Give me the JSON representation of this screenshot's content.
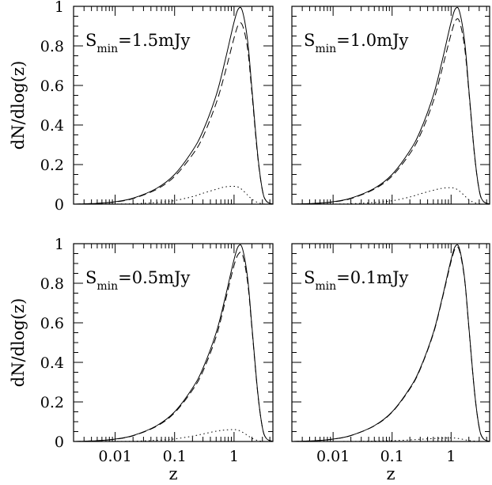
{
  "chart_data": [
    {
      "type": "line",
      "annotation": {
        "prefix": "S",
        "sub": "min",
        "value": "=1.5mJy"
      },
      "xscale": "log",
      "xlim": [
        0.002,
        4.5
      ],
      "ylim": [
        0,
        1
      ],
      "xticks": [
        "",
        "",
        ""
      ],
      "yticks": [
        "0",
        "0.2",
        "0.4",
        "0.6",
        "0.8",
        "1"
      ],
      "xlabel": "",
      "ylabel": "dN/dlog(z)",
      "peak_z": 1.3,
      "ratio_dash": 0.91,
      "dot_peak": 0.09,
      "dot_z": 0.9,
      "x": [
        0.002,
        0.005,
        0.01,
        0.02,
        0.05,
        0.1,
        0.2,
        0.3,
        0.5,
        0.7,
        1.0,
        1.2,
        1.4,
        1.7,
        2.0,
        2.5,
        3.0,
        3.5,
        4.5
      ],
      "series": [
        {
          "style": "solid",
          "values": [
            0.0,
            0.004,
            0.012,
            0.03,
            0.08,
            0.15,
            0.27,
            0.37,
            0.55,
            0.72,
            0.92,
            0.99,
            0.97,
            0.82,
            0.58,
            0.25,
            0.07,
            0.015,
            0.0
          ]
        },
        {
          "style": "dashed",
          "values": [
            0.0,
            0.004,
            0.011,
            0.028,
            0.075,
            0.14,
            0.25,
            0.34,
            0.51,
            0.66,
            0.84,
            0.91,
            0.9,
            0.78,
            0.56,
            0.24,
            0.07,
            0.015,
            0.0
          ]
        },
        {
          "style": "dotted",
          "values": [
            0.0,
            0.0,
            0.0005,
            0.002,
            0.008,
            0.018,
            0.038,
            0.055,
            0.075,
            0.087,
            0.09,
            0.085,
            0.07,
            0.045,
            0.025,
            0.008,
            0.002,
            0.0,
            0.0
          ]
        }
      ]
    },
    {
      "type": "line",
      "annotation": {
        "prefix": "S",
        "sub": "min",
        "value": "=1.0mJy"
      },
      "xscale": "log",
      "xlim": [
        0.002,
        4.5
      ],
      "ylim": [
        0,
        1
      ],
      "xticks": [
        "",
        "",
        ""
      ],
      "yticks": [
        "",
        "",
        "",
        "",
        "",
        ""
      ],
      "xlabel": "",
      "ylabel": "",
      "x": [
        0.002,
        0.005,
        0.01,
        0.02,
        0.05,
        0.1,
        0.2,
        0.3,
        0.5,
        0.7,
        1.0,
        1.2,
        1.4,
        1.7,
        2.0,
        2.5,
        3.0,
        3.5,
        4.5
      ],
      "series": [
        {
          "style": "solid",
          "values": [
            0.0,
            0.004,
            0.012,
            0.03,
            0.08,
            0.15,
            0.27,
            0.37,
            0.55,
            0.72,
            0.92,
            0.99,
            0.97,
            0.82,
            0.58,
            0.25,
            0.07,
            0.015,
            0.0
          ]
        },
        {
          "style": "dashed",
          "values": [
            0.0,
            0.004,
            0.011,
            0.028,
            0.076,
            0.142,
            0.255,
            0.35,
            0.52,
            0.68,
            0.86,
            0.93,
            0.92,
            0.79,
            0.57,
            0.245,
            0.07,
            0.015,
            0.0
          ]
        },
        {
          "style": "dotted",
          "values": [
            0.0,
            0.0,
            0.0005,
            0.002,
            0.008,
            0.017,
            0.036,
            0.052,
            0.07,
            0.08,
            0.083,
            0.078,
            0.065,
            0.042,
            0.022,
            0.007,
            0.002,
            0.0,
            0.0
          ]
        }
      ]
    },
    {
      "type": "line",
      "annotation": {
        "prefix": "S",
        "sub": "min",
        "value": "=0.5mJy"
      },
      "xscale": "log",
      "xlim": [
        0.002,
        4.5
      ],
      "ylim": [
        0,
        1
      ],
      "xticks": [
        "0.01",
        "0.1",
        "1"
      ],
      "yticks": [
        "0",
        "0.2",
        "0.4",
        "0.6",
        "0.8",
        "1"
      ],
      "xlabel": "z",
      "ylabel": "dN/dlog(z)",
      "x": [
        0.002,
        0.005,
        0.01,
        0.02,
        0.05,
        0.1,
        0.2,
        0.3,
        0.5,
        0.7,
        1.0,
        1.2,
        1.4,
        1.7,
        2.0,
        2.5,
        3.0,
        3.5,
        4.5
      ],
      "series": [
        {
          "style": "solid",
          "values": [
            0.0,
            0.004,
            0.012,
            0.03,
            0.08,
            0.15,
            0.27,
            0.37,
            0.55,
            0.72,
            0.92,
            0.99,
            0.97,
            0.82,
            0.58,
            0.25,
            0.07,
            0.015,
            0.0
          ]
        },
        {
          "style": "dashed",
          "values": [
            0.0,
            0.004,
            0.0115,
            0.029,
            0.077,
            0.145,
            0.26,
            0.355,
            0.53,
            0.7,
            0.89,
            0.95,
            0.94,
            0.8,
            0.57,
            0.245,
            0.07,
            0.015,
            0.0
          ]
        },
        {
          "style": "dotted",
          "values": [
            0.0,
            0.0,
            0.0003,
            0.0015,
            0.006,
            0.013,
            0.027,
            0.038,
            0.052,
            0.058,
            0.06,
            0.056,
            0.046,
            0.03,
            0.016,
            0.005,
            0.001,
            0.0,
            0.0
          ]
        }
      ]
    },
    {
      "type": "line",
      "annotation": {
        "prefix": "S",
        "sub": "min",
        "value": "=0.1mJy"
      },
      "xscale": "log",
      "xlim": [
        0.002,
        4.5
      ],
      "ylim": [
        0,
        1
      ],
      "xticks": [
        "0.01",
        "0.1",
        "1"
      ],
      "yticks": [
        "",
        "",
        "",
        "",
        "",
        ""
      ],
      "xlabel": "z",
      "ylabel": "",
      "x": [
        0.002,
        0.005,
        0.01,
        0.02,
        0.05,
        0.1,
        0.2,
        0.3,
        0.5,
        0.7,
        1.0,
        1.2,
        1.4,
        1.7,
        2.0,
        2.5,
        3.0,
        3.5,
        4.5
      ],
      "series": [
        {
          "style": "solid",
          "values": [
            0.0,
            0.004,
            0.012,
            0.03,
            0.08,
            0.15,
            0.27,
            0.37,
            0.55,
            0.72,
            0.92,
            0.99,
            0.97,
            0.82,
            0.58,
            0.25,
            0.07,
            0.015,
            0.0
          ]
        },
        {
          "style": "dashed",
          "values": [
            0.0,
            0.004,
            0.012,
            0.03,
            0.079,
            0.148,
            0.266,
            0.366,
            0.545,
            0.715,
            0.91,
            0.98,
            0.96,
            0.815,
            0.575,
            0.248,
            0.07,
            0.015,
            0.0
          ]
        },
        {
          "style": "dotted",
          "values": [
            0.0,
            0.0,
            0.0001,
            0.0005,
            0.002,
            0.004,
            0.008,
            0.011,
            0.015,
            0.017,
            0.018,
            0.017,
            0.014,
            0.009,
            0.005,
            0.002,
            0.0005,
            0.0,
            0.0
          ]
        }
      ]
    }
  ]
}
